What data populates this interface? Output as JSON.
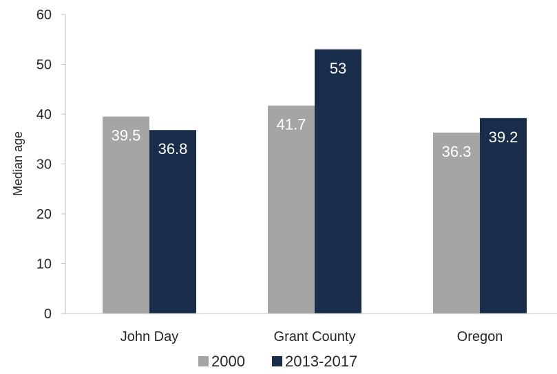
{
  "chart_data": {
    "type": "bar",
    "categories": [
      "John Day",
      "Grant County",
      "Oregon"
    ],
    "series": [
      {
        "name": "2000",
        "values": [
          39.5,
          41.7,
          36.3
        ],
        "labels": [
          "39.5",
          "41.7",
          "36.3"
        ],
        "color": "#a5a5a5"
      },
      {
        "name": "2013-2017",
        "values": [
          36.8,
          53,
          39.2
        ],
        "labels": [
          "36.8",
          "53",
          "39.2"
        ],
        "color": "#172d4a"
      }
    ],
    "ylabel": "Median age",
    "ylim": [
      0,
      60
    ],
    "yticks": [
      "0",
      "10",
      "20",
      "30",
      "40",
      "50",
      "60"
    ],
    "grid": false,
    "legend_position": "bottom"
  }
}
